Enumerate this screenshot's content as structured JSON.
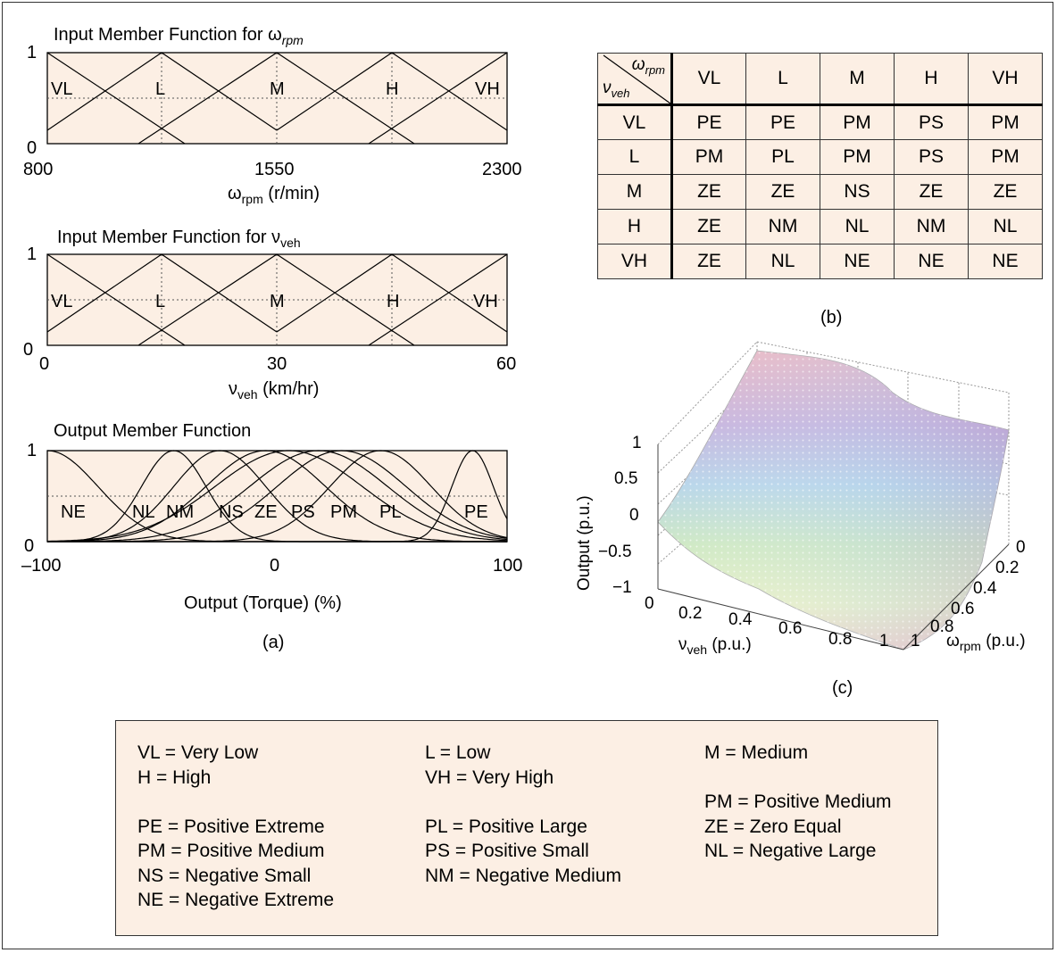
{
  "panel_a": {
    "caption": "(a)",
    "omega_plot": {
      "title": "Input Member Function for ω",
      "title_sub": "rpm",
      "y_top": "1",
      "y_bottom": "0",
      "x_ticks": [
        "800",
        "1550",
        "2300"
      ],
      "xlabel": "ω",
      "xlabel_sub": "rpm",
      "xlabel_unit": " (r/min)",
      "terms": [
        "VL",
        "L",
        "M",
        "H",
        "VH"
      ]
    },
    "veh_plot": {
      "title": "Input Member Function for ν",
      "title_sub": "veh",
      "y_top": "1",
      "y_bottom": "0",
      "x_ticks": [
        "0",
        "30",
        "60"
      ],
      "xlabel": "ν",
      "xlabel_sub": "veh",
      "xlabel_unit": " (km/hr)",
      "terms": [
        "VL",
        "L",
        "M",
        "H",
        "VH"
      ]
    },
    "output_plot": {
      "title": "Output Member Function",
      "y_top": "1",
      "y_bottom": "0",
      "x_ticks": [
        "–100",
        "0",
        "100"
      ],
      "xlabel": "Output (Torque) (%)",
      "terms": [
        "NE",
        "NL",
        "NM",
        "NS",
        "ZE",
        "PS",
        "PM",
        "PL",
        "PE"
      ]
    }
  },
  "panel_b": {
    "caption": "(b)",
    "corner_top": "ω",
    "corner_top_sub": "rpm",
    "corner_bottom": "ν",
    "corner_bottom_sub": "veh",
    "columns": [
      "VL",
      "L",
      "M",
      "H",
      "VH"
    ],
    "rows": [
      {
        "label": "VL",
        "cells": [
          "PE",
          "PE",
          "PM",
          "PS",
          "PM"
        ]
      },
      {
        "label": "L",
        "cells": [
          "PM",
          "PL",
          "PM",
          "PS",
          "PM"
        ]
      },
      {
        "label": "M",
        "cells": [
          "ZE",
          "ZE",
          "NS",
          "ZE",
          "ZE"
        ]
      },
      {
        "label": "H",
        "cells": [
          "ZE",
          "NM",
          "NL",
          "NM",
          "NL"
        ]
      },
      {
        "label": "VH",
        "cells": [
          "ZE",
          "NL",
          "NE",
          "NE",
          "NE"
        ]
      }
    ]
  },
  "panel_c": {
    "caption": "(c)",
    "zlabel": "Output (p.u.)",
    "z_ticks": [
      "1",
      "0.5",
      "0",
      "−0.5",
      "−1"
    ],
    "x_ticks": [
      "0",
      "0.2",
      "0.4",
      "0.6",
      "0.8",
      "1"
    ],
    "xlabel": "ν",
    "xlabel_sub": "veh",
    "xlabel_unit": " (p.u.)",
    "y_ticks": [
      "0",
      "0.2",
      "0.4",
      "0.6",
      "0.8",
      "1"
    ],
    "ylabel": "ω",
    "ylabel_sub": "rpm",
    "ylabel_unit": " (p.u.)"
  },
  "legend": {
    "col1": [
      "VL = Very Low",
      "H = High",
      "",
      "PE = Positive Extreme",
      "PM = Positive Medium",
      "NS = Negative Small",
      "NE = Negative Extreme"
    ],
    "col2": [
      "L = Low",
      "VH = Very High",
      "",
      "PL = Positive Large",
      "PS = Positive Small",
      "NM = Negative Medium"
    ],
    "col3": [
      "M = Medium",
      "",
      "PM = Positive Medium",
      "ZE = Zero Equal",
      "NL = Negative Large"
    ]
  },
  "colors": {
    "panel_fill": "#fcefe4",
    "line": "#000000"
  }
}
